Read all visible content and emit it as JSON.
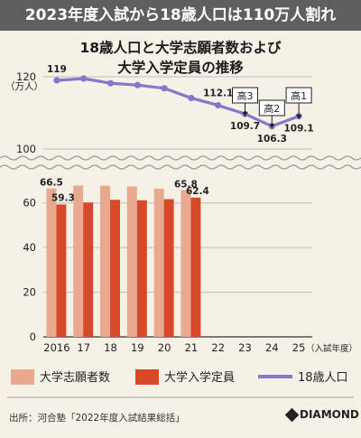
{
  "banner": "2023年度入試から18歳人口は110万人割れ",
  "title_lines": [
    "18歳人口と大学志願者数および",
    "大学入学定員の推移"
  ],
  "source": "出所：河合塾「2022年度入試結果総括」",
  "brand": "DIAMOND",
  "colors": {
    "applicants": "#e9a98f",
    "capacity": "#d64a2a",
    "population": "#8577c9",
    "grid": "#bdbdbd",
    "background": "#f6f1e6",
    "banner": "#5f5f5f"
  },
  "chart_data": {
    "type": "bar",
    "unit": "（万人）",
    "x_axis_suffix": "（入試年度）",
    "categories": [
      "2016",
      "17",
      "18",
      "19",
      "20",
      "21",
      "22",
      "23",
      "24",
      "25"
    ],
    "upper_y_ticks": [
      "120",
      "100"
    ],
    "lower_y_ticks": [
      "60",
      "40",
      "20",
      "0"
    ],
    "upper_ylim": [
      100,
      120
    ],
    "lower_ylim": [
      0,
      70
    ],
    "series": [
      {
        "name": "大学志願者数",
        "type": "bar",
        "values": [
          66.5,
          67.8,
          67.7,
          67.4,
          66.4,
          65.8,
          null,
          null,
          null,
          null
        ]
      },
      {
        "name": "大学入学定員",
        "type": "bar",
        "values": [
          59.3,
          60.2,
          61.4,
          61.2,
          61.7,
          62.4,
          null,
          null,
          null,
          null
        ]
      },
      {
        "name": "18歳人口",
        "type": "line",
        "values": [
          119,
          119.5,
          118.2,
          117.7,
          116.8,
          114.1,
          112.1,
          109.7,
          106.3,
          109.1
        ]
      }
    ],
    "data_labels": [
      {
        "series": "大学志願者数",
        "index": 0,
        "text": "66.5"
      },
      {
        "series": "大学入学定員",
        "index": 0,
        "text": "59.3"
      },
      {
        "series": "大学志願者数",
        "index": 5,
        "text": "65.8"
      },
      {
        "series": "大学入学定員",
        "index": 5,
        "text": "62.4"
      },
      {
        "series": "18歳人口",
        "index": 0,
        "text": "119"
      },
      {
        "series": "18歳人口",
        "index": 6,
        "text": "112.1"
      },
      {
        "series": "18歳人口",
        "index": 7,
        "text": "109.7"
      },
      {
        "series": "18歳人口",
        "index": 8,
        "text": "106.3"
      },
      {
        "series": "18歳人口",
        "index": 9,
        "text": "109.1"
      }
    ],
    "annotations": [
      {
        "text": "高3",
        "index": 7
      },
      {
        "text": "高2",
        "index": 8
      },
      {
        "text": "高1",
        "index": 9
      }
    ],
    "legend": [
      {
        "label": "大学志願者数",
        "kind": "bar",
        "color": "#e9a98f"
      },
      {
        "label": "大学入学定員",
        "kind": "bar",
        "color": "#d64a2a"
      },
      {
        "label": "18歳人口",
        "kind": "line",
        "color": "#8577c9"
      }
    ],
    "axis_break": true,
    "grid": true,
    "legend_position": "bottom"
  }
}
